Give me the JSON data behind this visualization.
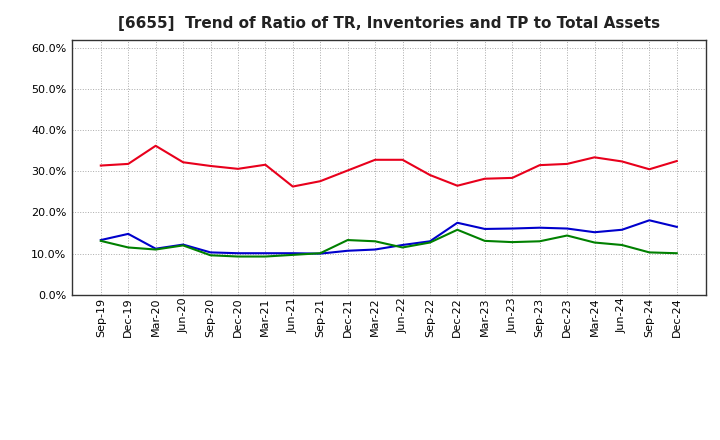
{
  "title": "[6655]  Trend of Ratio of TR, Inventories and TP to Total Assets",
  "x_labels": [
    "Sep-19",
    "Dec-19",
    "Mar-20",
    "Jun-20",
    "Sep-20",
    "Dec-20",
    "Mar-21",
    "Jun-21",
    "Sep-21",
    "Dec-21",
    "Mar-22",
    "Jun-22",
    "Sep-22",
    "Dec-22",
    "Mar-23",
    "Jun-23",
    "Sep-23",
    "Dec-23",
    "Mar-24",
    "Jun-24",
    "Sep-24",
    "Dec-24"
  ],
  "trade_receivables": [
    0.314,
    0.318,
    0.362,
    0.322,
    0.313,
    0.306,
    0.316,
    0.263,
    0.276,
    0.302,
    0.328,
    0.328,
    0.291,
    0.265,
    0.282,
    0.284,
    0.315,
    0.318,
    0.334,
    0.324,
    0.305,
    0.325
  ],
  "inventories": [
    0.133,
    0.148,
    0.112,
    0.122,
    0.103,
    0.101,
    0.101,
    0.101,
    0.1,
    0.107,
    0.11,
    0.121,
    0.13,
    0.175,
    0.16,
    0.161,
    0.163,
    0.161,
    0.152,
    0.158,
    0.181,
    0.165
  ],
  "trade_payables": [
    0.131,
    0.115,
    0.11,
    0.12,
    0.096,
    0.093,
    0.093,
    0.097,
    0.101,
    0.133,
    0.13,
    0.115,
    0.127,
    0.158,
    0.131,
    0.128,
    0.13,
    0.144,
    0.127,
    0.121,
    0.103,
    0.101
  ],
  "colors": {
    "trade_receivables": "#e8001c",
    "inventories": "#0000cc",
    "trade_payables": "#008000"
  },
  "ylim": [
    0.0,
    0.62
  ],
  "yticks": [
    0.0,
    0.1,
    0.2,
    0.3,
    0.4,
    0.5,
    0.6
  ],
  "background_color": "#ffffff",
  "grid_color": "#aaaaaa",
  "title_fontsize": 11,
  "tick_fontsize": 8,
  "legend_fontsize": 9
}
